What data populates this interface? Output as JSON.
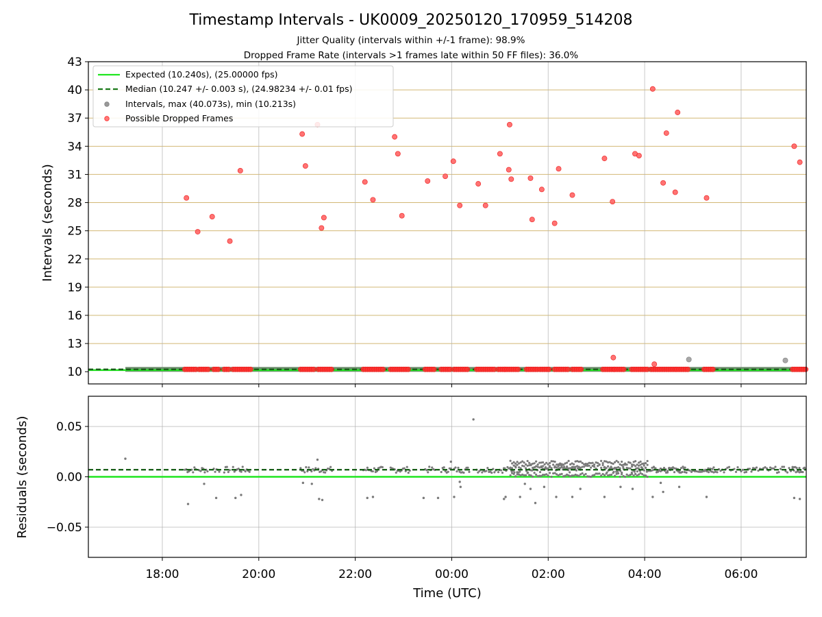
{
  "chart_data": [
    {
      "type": "scatter",
      "title": "Timestamp Intervals - UK0009_20250120_170959_514208",
      "subtitle_lines": [
        "Jitter Quality (intervals within +/-1 frame): 98.9%",
        "Dropped Frame Rate (intervals >1 frames late within 50 FF files): 36.0%"
      ],
      "ylabel": "Intervals (seconds)",
      "xlabel": "",
      "xlim": [
        "16:28",
        "07:21"
      ],
      "ylim": [
        8.7,
        43
      ],
      "yticks": [
        10,
        13,
        16,
        19,
        22,
        25,
        28,
        31,
        34,
        37,
        40,
        43
      ],
      "xtick_values": [
        "18:00",
        "20:00",
        "22:00",
        "00:00",
        "02:00",
        "04:00",
        "06:00"
      ],
      "grid": "x and y",
      "legend_position": "upper left",
      "legend": [
        {
          "label": "Expected (10.240s), (25.00000 fps)",
          "style": "line",
          "color": "#1ee61e"
        },
        {
          "label": "Median (10.247 +/- 0.003 s), (24.98234 +/- 0.01 fps)",
          "style": "dashed",
          "color": "#1a7a1a"
        },
        {
          "label": "Intervals, max (40.073s), min (10.213s)",
          "style": "marker",
          "color": "#999999"
        },
        {
          "label": "Possible Dropped Frames",
          "style": "marker",
          "color": "#ff3b3b"
        }
      ],
      "expected_interval": 10.24,
      "median_interval": 10.247,
      "interval_points_high": [
        {
          "x": "04:55",
          "y": 11.3
        },
        {
          "x": "06:55",
          "y": 11.2
        }
      ],
      "dropped_frames": [
        {
          "x": "18:30",
          "y": 28.5
        },
        {
          "x": "18:44",
          "y": 24.9
        },
        {
          "x": "19:02",
          "y": 26.5
        },
        {
          "x": "19:24",
          "y": 23.9
        },
        {
          "x": "19:37",
          "y": 31.4
        },
        {
          "x": "20:54",
          "y": 35.3
        },
        {
          "x": "20:58",
          "y": 31.9
        },
        {
          "x": "21:13",
          "y": 36.3
        },
        {
          "x": "21:18",
          "y": 25.3
        },
        {
          "x": "21:21",
          "y": 26.4
        },
        {
          "x": "22:12",
          "y": 30.2
        },
        {
          "x": "22:22",
          "y": 28.3
        },
        {
          "x": "22:49",
          "y": 35.0
        },
        {
          "x": "22:53",
          "y": 33.2
        },
        {
          "x": "22:58",
          "y": 26.6
        },
        {
          "x": "23:30",
          "y": 30.3
        },
        {
          "x": "23:52",
          "y": 30.8
        },
        {
          "x": "00:02",
          "y": 32.4
        },
        {
          "x": "00:10",
          "y": 27.7
        },
        {
          "x": "00:33",
          "y": 30.0
        },
        {
          "x": "00:42",
          "y": 27.7
        },
        {
          "x": "01:00",
          "y": 33.2
        },
        {
          "x": "01:11",
          "y": 31.5
        },
        {
          "x": "01:12",
          "y": 36.3
        },
        {
          "x": "01:14",
          "y": 30.5
        },
        {
          "x": "01:38",
          "y": 30.6
        },
        {
          "x": "01:40",
          "y": 26.2
        },
        {
          "x": "01:52",
          "y": 29.4
        },
        {
          "x": "02:08",
          "y": 25.8
        },
        {
          "x": "02:13",
          "y": 31.6
        },
        {
          "x": "02:30",
          "y": 28.8
        },
        {
          "x": "03:10",
          "y": 32.7
        },
        {
          "x": "03:20",
          "y": 28.1
        },
        {
          "x": "03:21",
          "y": 11.5
        },
        {
          "x": "03:48",
          "y": 33.2
        },
        {
          "x": "03:53",
          "y": 33.0
        },
        {
          "x": "04:10",
          "y": 40.1
        },
        {
          "x": "04:12",
          "y": 10.8
        },
        {
          "x": "04:23",
          "y": 30.1
        },
        {
          "x": "04:27",
          "y": 35.4
        },
        {
          "x": "04:38",
          "y": 29.1
        },
        {
          "x": "04:41",
          "y": 37.6
        },
        {
          "x": "05:17",
          "y": 28.5
        },
        {
          "x": "07:06",
          "y": 34.0
        },
        {
          "x": "07:13",
          "y": 32.3
        }
      ],
      "dropped_frame_clusters_near_10s": [
        [
          "18:28",
          "18:42"
        ],
        [
          "18:46",
          "18:57"
        ],
        [
          "19:04",
          "19:12"
        ],
        [
          "19:17",
          "19:25"
        ],
        [
          "19:28",
          "19:50"
        ],
        [
          "20:52",
          "21:11"
        ],
        [
          "21:14",
          "21:32"
        ],
        [
          "22:10",
          "22:35"
        ],
        [
          "22:44",
          "23:08"
        ],
        [
          "23:27",
          "23:40"
        ],
        [
          "23:47",
          "24:00"
        ],
        [
          "00:03",
          "00:22"
        ],
        [
          "00:31",
          "00:55"
        ],
        [
          "00:58",
          "01:08"
        ],
        [
          "01:06",
          "01:25"
        ],
        [
          "01:33",
          "01:48"
        ],
        [
          "01:50",
          "02:02"
        ],
        [
          "02:08",
          "02:27"
        ],
        [
          "02:30",
          "02:41"
        ],
        [
          "03:08",
          "03:23"
        ],
        [
          "03:23",
          "03:36"
        ],
        [
          "03:44",
          "04:04"
        ],
        [
          "04:08",
          "04:38"
        ],
        [
          "04:40",
          "04:55"
        ],
        [
          "05:14",
          "05:26"
        ],
        [
          "07:04",
          "07:21"
        ]
      ],
      "interval_band": [
        "17:14",
        "07:21"
      ],
      "dashed_line_start": "16:28"
    },
    {
      "type": "scatter",
      "title": "",
      "xlabel": "Time (UTC)",
      "ylabel": "Residuals (seconds)",
      "xlim": [
        "16:28",
        "07:21"
      ],
      "ylim": [
        -0.08,
        0.08
      ],
      "yticks": [
        0.05,
        0.0,
        -0.05
      ],
      "ytick_labels": [
        "0.05",
        "0.00",
        "−0.05"
      ],
      "xticks": [
        "18:00",
        "20:00",
        "22:00",
        "00:00",
        "02:00",
        "04:00",
        "06:00"
      ],
      "grid": "x and y",
      "expected_residual": 0.0,
      "median_residual": 0.007,
      "residual_typical": 0.007,
      "dense_band": {
        "x": [
          "01:13",
          "04:05"
        ],
        "y_low": 0.0,
        "y_high": 0.017
      },
      "outliers": [
        {
          "x": "17:14",
          "y": 0.018
        },
        {
          "x": "18:32",
          "y": -0.027
        },
        {
          "x": "18:52",
          "y": -0.007
        },
        {
          "x": "19:07",
          "y": -0.021
        },
        {
          "x": "19:31",
          "y": -0.021
        },
        {
          "x": "19:38",
          "y": -0.018
        },
        {
          "x": "20:55",
          "y": -0.006
        },
        {
          "x": "21:06",
          "y": -0.007
        },
        {
          "x": "21:13",
          "y": 0.017
        },
        {
          "x": "21:15",
          "y": -0.022
        },
        {
          "x": "21:19",
          "y": -0.023
        },
        {
          "x": "22:15",
          "y": -0.021
        },
        {
          "x": "22:22",
          "y": -0.02
        },
        {
          "x": "23:25",
          "y": -0.021
        },
        {
          "x": "23:43",
          "y": -0.021
        },
        {
          "x": "23:59",
          "y": 0.015
        },
        {
          "x": "00:03",
          "y": -0.02
        },
        {
          "x": "00:10",
          "y": -0.005
        },
        {
          "x": "00:11",
          "y": -0.01
        },
        {
          "x": "00:27",
          "y": 0.057
        },
        {
          "x": "01:05",
          "y": -0.022
        },
        {
          "x": "01:07",
          "y": -0.02
        },
        {
          "x": "01:25",
          "y": -0.02
        },
        {
          "x": "01:31",
          "y": -0.007
        },
        {
          "x": "01:38",
          "y": -0.012
        },
        {
          "x": "01:44",
          "y": -0.026
        },
        {
          "x": "01:55",
          "y": -0.01
        },
        {
          "x": "02:10",
          "y": -0.02
        },
        {
          "x": "02:30",
          "y": -0.02
        },
        {
          "x": "02:40",
          "y": -0.012
        },
        {
          "x": "03:10",
          "y": -0.02
        },
        {
          "x": "03:30",
          "y": -0.01
        },
        {
          "x": "03:45",
          "y": -0.012
        },
        {
          "x": "04:10",
          "y": -0.02
        },
        {
          "x": "04:20",
          "y": -0.006
        },
        {
          "x": "04:23",
          "y": -0.015
        },
        {
          "x": "04:43",
          "y": -0.01
        },
        {
          "x": "05:17",
          "y": -0.02
        },
        {
          "x": "07:06",
          "y": -0.021
        },
        {
          "x": "07:13",
          "y": -0.022
        }
      ]
    }
  ]
}
